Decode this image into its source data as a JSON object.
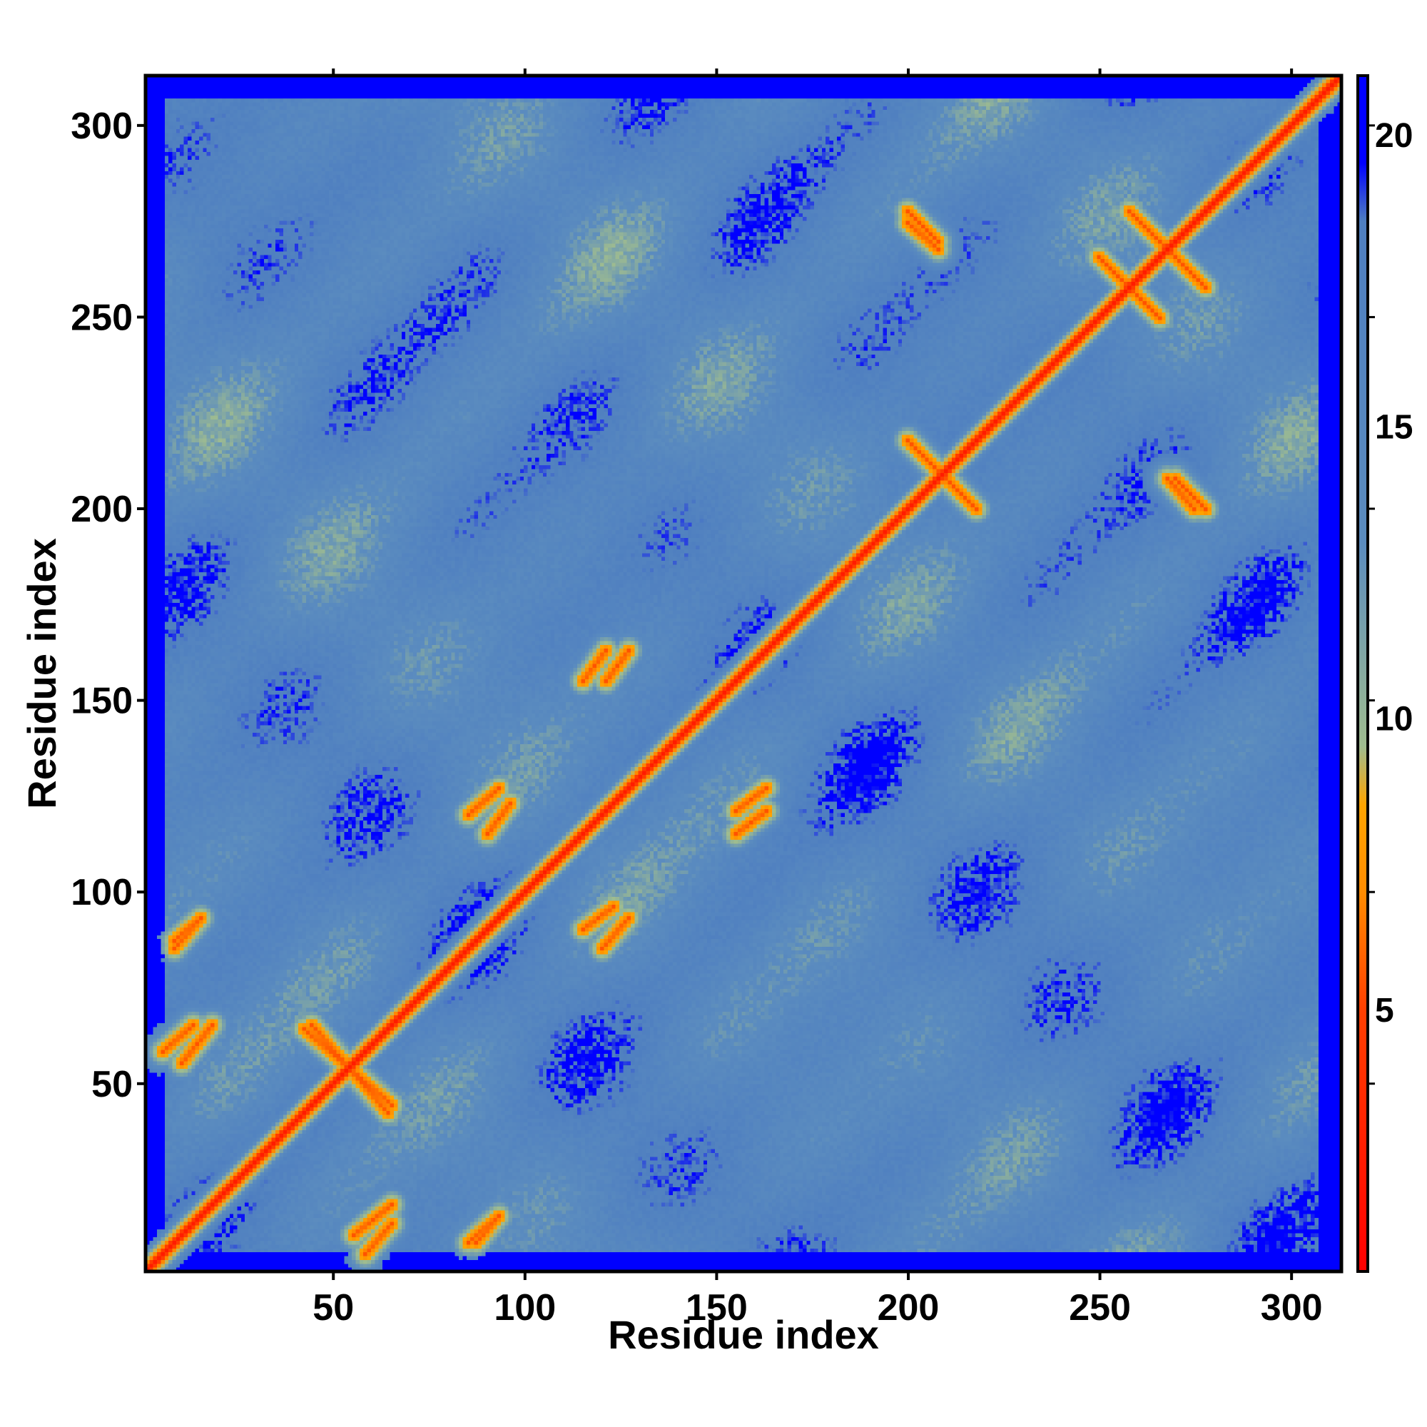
{
  "chart_data": {
    "type": "heatmap",
    "title": "",
    "xlabel": "Residue index",
    "ylabel": "Residue index",
    "xlim": [
      1,
      313
    ],
    "ylim": [
      1,
      313
    ],
    "x_ticks": [
      50,
      100,
      150,
      200,
      250,
      300
    ],
    "y_ticks": [
      50,
      100,
      150,
      200,
      250,
      300
    ],
    "colorbar": {
      "range": [
        0.5,
        21
      ],
      "ticks": [
        5,
        10,
        15,
        20
      ],
      "stops": [
        {
          "value": 0.5,
          "color": "#ff0000"
        },
        {
          "value": 5,
          "color": "#ff4000"
        },
        {
          "value": 7,
          "color": "#ff8c00"
        },
        {
          "value": 8.5,
          "color": "#ffa500"
        },
        {
          "value": 9.5,
          "color": "#9fbc8f"
        },
        {
          "value": 13,
          "color": "#5b8cbf"
        },
        {
          "value": 18.5,
          "color": "#4f7fc0"
        },
        {
          "value": 19.5,
          "color": "#0000ff"
        },
        {
          "value": 21,
          "color": "#0000ff"
        }
      ]
    },
    "grid": false,
    "description_features": {
      "diagonal": "red band along i=j",
      "background_value": 20,
      "contact_lines": [
        {
          "from": [
            10,
            55
          ],
          "to": [
            18,
            65
          ]
        },
        {
          "from": [
            58,
            5
          ],
          "to": [
            65,
            13
          ]
        },
        {
          "from": [
            87,
            8
          ],
          "to": [
            93,
            15
          ]
        },
        {
          "from": [
            44,
            65
          ],
          "to": [
            64,
            42
          ]
        },
        {
          "from": [
            8,
            85
          ],
          "to": [
            15,
            93
          ]
        },
        {
          "from": [
            90,
            115
          ],
          "to": [
            96,
            123
          ]
        },
        {
          "from": [
            120,
            85
          ],
          "to": [
            127,
            93
          ]
        },
        {
          "from": [
            121,
            155
          ],
          "to": [
            127,
            163
          ]
        },
        {
          "from": [
            155,
            115
          ],
          "to": [
            163,
            121
          ]
        },
        {
          "from": [
            200,
            218
          ],
          "to": [
            218,
            200
          ]
        },
        {
          "from": [
            200,
            278
          ],
          "to": [
            208,
            270
          ]
        },
        {
          "from": [
            268,
            208
          ],
          "to": [
            275,
            200
          ]
        },
        {
          "from": [
            250,
            266
          ],
          "to": [
            266,
            250
          ]
        },
        {
          "from": [
            258,
            278
          ],
          "to": [
            278,
            258
          ]
        }
      ]
    }
  }
}
